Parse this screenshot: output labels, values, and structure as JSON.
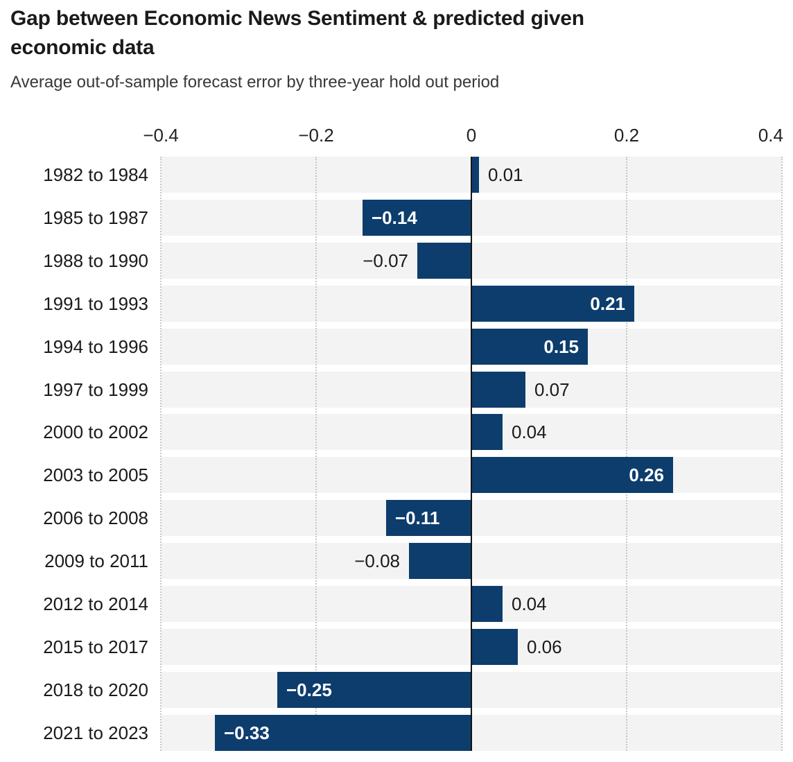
{
  "header": {
    "title": "Gap between Economic News Sentiment & predicted given\neconomic data",
    "subtitle": "Average out-of-sample forecast error by three-year hold out period"
  },
  "chart_data": {
    "type": "bar",
    "orientation": "horizontal",
    "title": "Gap between Economic News Sentiment & predicted given economic data",
    "subtitle": "Average out-of-sample forecast error by three-year hold out period",
    "categories": [
      "1982 to 1984",
      "1985 to 1987",
      "1988 to 1990",
      "1991 to 1993",
      "1994 to 1996",
      "1997 to 1999",
      "2000 to 2002",
      "2003 to 2005",
      "2006 to 2008",
      "2009 to 2011",
      "2012 to 2014",
      "2015 to 2017",
      "2018 to 2020",
      "2021 to 2023"
    ],
    "values": [
      0.01,
      -0.14,
      -0.07,
      0.21,
      0.15,
      0.07,
      0.04,
      0.26,
      -0.11,
      -0.08,
      0.04,
      0.06,
      -0.25,
      -0.33
    ],
    "value_labels": [
      "0.01",
      "−0.14",
      "−0.07",
      "0.21",
      "0.15",
      "0.07",
      "0.04",
      "0.26",
      "−0.11",
      "−0.08",
      "0.04",
      "0.06",
      "−0.25",
      "−0.33"
    ],
    "xlim": [
      -0.4,
      0.4
    ],
    "x_ticks": [
      -0.4,
      -0.2,
      0,
      0.2,
      0.4
    ],
    "x_tick_labels": [
      "−0.4",
      "−0.2",
      "0",
      "0.2",
      "0.4"
    ],
    "grid": "dotted-vertical",
    "legend": "none",
    "colors": {
      "bar": "#0d3d6d",
      "row_stripe": "#f3f3f3",
      "gridline": "#c7c7c7",
      "zero_line": "#141414",
      "label_inside": "#ffffff",
      "label_outside": "#1a1a1a"
    }
  }
}
